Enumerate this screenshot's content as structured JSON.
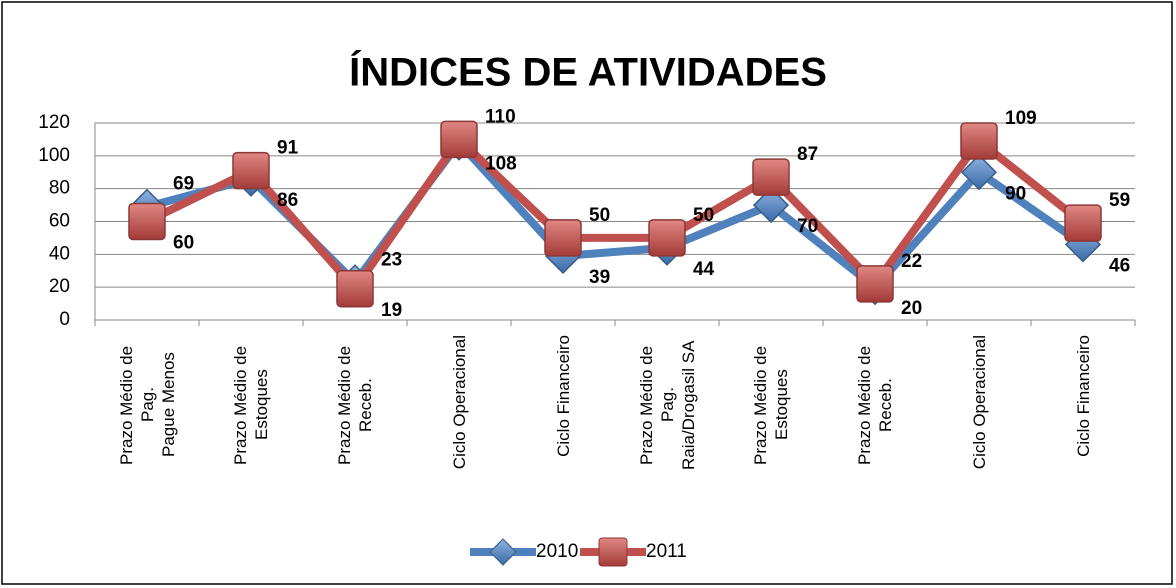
{
  "chart_data": {
    "type": "line",
    "title": "ÍNDICES DE ATIVIDADES",
    "categories": [
      "Prazo Médio de Pag.\nPague Menos",
      "Prazo Médio de Estoques",
      "Prazo Médio de Receb.",
      "Ciclo Operacional",
      "Ciclo Financeiro",
      "Prazo Médio de Pag.\nRaia/Drogasil SA",
      "Prazo Médio de Estoques",
      "Prazo Médio de Receb.",
      "Ciclo Operacional",
      "Ciclo Financeiro"
    ],
    "series": [
      {
        "name": "2010",
        "color": "#4f81bd",
        "values": [
          69,
          86,
          23,
          108,
          39,
          44,
          70,
          20,
          90,
          46
        ]
      },
      {
        "name": "2011",
        "color": "#c0504d",
        "values": [
          60,
          91,
          19,
          110,
          50,
          50,
          87,
          22,
          109,
          59
        ]
      }
    ],
    "ylim": [
      0,
      120
    ],
    "yticks": [
      0,
      20,
      40,
      60,
      80,
      100,
      120
    ],
    "grid": true,
    "legend": "bottom"
  }
}
